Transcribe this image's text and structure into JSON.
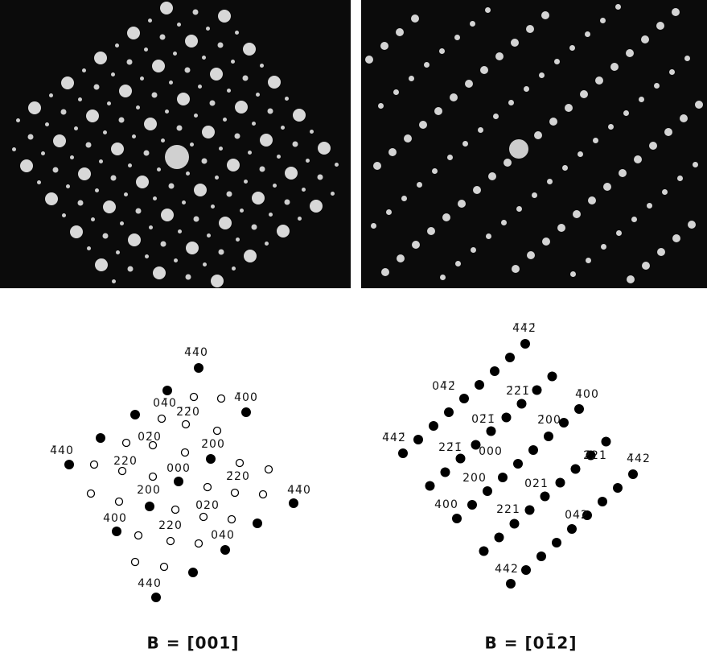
{
  "left_diagram": {
    "labels": [
      "4̄4̄0",
      "04̄0",
      "2̄2̄0",
      "4̄00",
      "02̄0",
      "4̄40",
      "2̄00",
      "220",
      "000",
      "2̄20",
      "200",
      "020",
      "400",
      "44̄0",
      "220",
      "040",
      "440"
    ],
    "caption": "B = [001]"
  },
  "right_diagram": {
    "labels": [
      "4̄4̄2̄",
      "04̄2̄",
      "2̄2̄1̄",
      "4̄00",
      "02̄1̄",
      "2̄00",
      "4̄42̄",
      "22̄1̄",
      "000",
      "2̄21",
      "4̄42",
      "200",
      "021",
      "400",
      "221",
      "042",
      "442"
    ],
    "caption": "B = [01̄2]"
  }
}
